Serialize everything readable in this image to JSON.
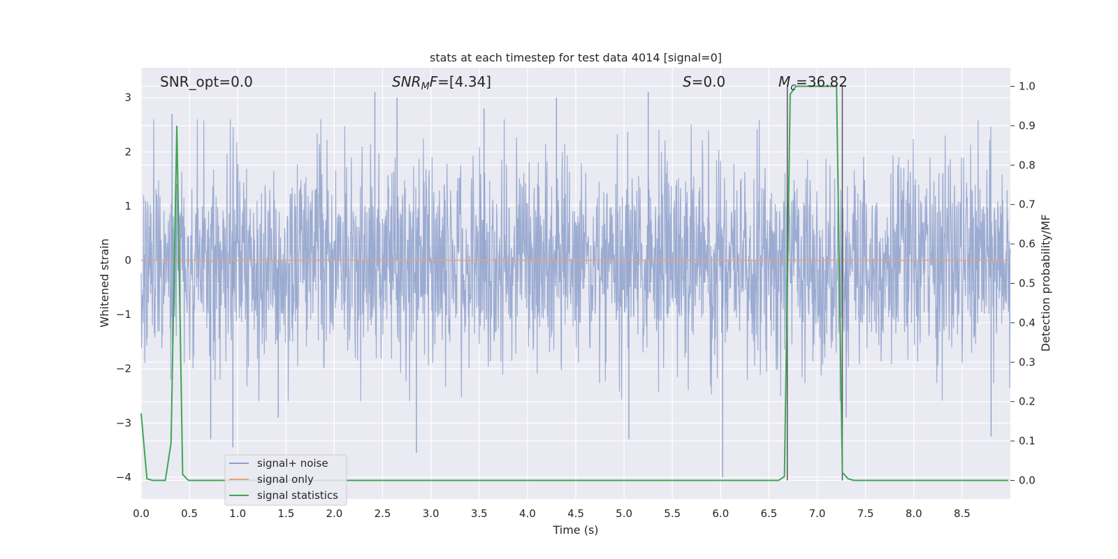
{
  "chart_data": {
    "type": "line",
    "title": "stats at each timestep for test data 4014 [signal=0]",
    "xlabel": "Time (s)",
    "ylabel": "Whitened strain",
    "y2label": "Detection probability/MF",
    "xlim": [
      0.0,
      9.0
    ],
    "ylim": [
      -4.4,
      3.55
    ],
    "y2lim": [
      -0.047,
      1.047
    ],
    "xticks": [
      0.0,
      0.5,
      1.0,
      1.5,
      2.0,
      2.5,
      3.0,
      3.5,
      4.0,
      4.5,
      5.0,
      5.5,
      6.0,
      6.5,
      7.0,
      7.5,
      8.0,
      8.5
    ],
    "xtick_labels": [
      "0.0",
      "0.5",
      "1.0",
      "1.5",
      "2.0",
      "2.5",
      "3.0",
      "3.5",
      "4.0",
      "4.5",
      "5.0",
      "5.5",
      "6.0",
      "6.5",
      "7.0",
      "7.5",
      "8.0",
      "8.5"
    ],
    "yticks": [
      -4,
      -3,
      -2,
      -1,
      0,
      1,
      2,
      3
    ],
    "ytick_labels": [
      "−4",
      "−3",
      "−2",
      "−1",
      "0",
      "1",
      "2",
      "3"
    ],
    "y2ticks": [
      0.0,
      0.1,
      0.2,
      0.3,
      0.4,
      0.5,
      0.6,
      0.7,
      0.8,
      0.9,
      1.0
    ],
    "y2tick_labels": [
      "0.0",
      "0.1",
      "0.2",
      "0.3",
      "0.4",
      "0.5",
      "0.6",
      "0.7",
      "0.8",
      "0.9",
      "1.0"
    ],
    "grid": true,
    "legend_position": "lower-left",
    "annotations": {
      "snr_opt": "SNR_opt=0.0",
      "snr_mf_main": "SNR",
      "snr_mf_sub": "M",
      "snr_mf_italic": "F",
      "snr_mf_rest": "=[4.34]",
      "s_italic": "S",
      "s_rest": "=0.0",
      "mc_main": "M",
      "mc_sub": "c",
      "mc_rest": "=36.82"
    },
    "series": [
      {
        "name": "signal+ noise",
        "color": "#8da0cb",
        "kind": "dense noise, amplitude roughly ±2, occasional spikes up to about 3.1 and down to about -4.0",
        "spikes": [
          {
            "x": 0.32,
            "y": 2.7
          },
          {
            "x": 0.72,
            "y": -3.3
          },
          {
            "x": 0.95,
            "y": -3.45
          },
          {
            "x": 1.42,
            "y": -2.9
          },
          {
            "x": 2.42,
            "y": 3.1
          },
          {
            "x": 2.85,
            "y": -3.55
          },
          {
            "x": 2.65,
            "y": 3.0
          },
          {
            "x": 4.3,
            "y": 3.0
          },
          {
            "x": 5.05,
            "y": -3.3
          },
          {
            "x": 5.25,
            "y": 3.1
          },
          {
            "x": 6.02,
            "y": -4.0
          },
          {
            "x": 8.8,
            "y": -3.25
          },
          {
            "x": 7.3,
            "y": -2.9
          },
          {
            "x": 3.55,
            "y": 2.8
          }
        ]
      },
      {
        "name": "signal only",
        "color": "#e5a27e",
        "x": [
          0.0,
          9.0
        ],
        "y": [
          0.0,
          0.0
        ]
      },
      {
        "name": "signal statistics",
        "color": "#3fa552",
        "axis": "right",
        "x": [
          0.0,
          0.06,
          0.12,
          0.18,
          0.25,
          0.31,
          0.37,
          0.43,
          0.49,
          0.55,
          0.61,
          6.6,
          6.66,
          6.72,
          6.78,
          6.84,
          6.9,
          7.2,
          7.26,
          7.32,
          7.38,
          7.44,
          8.98
        ],
        "y": [
          0.17,
          0.004,
          0.0,
          0.0,
          0.0,
          0.095,
          0.9,
          0.015,
          0.0,
          0.0,
          0.0,
          0.0,
          0.01,
          0.98,
          1.0,
          1.0,
          1.0,
          1.0,
          0.02,
          0.004,
          0.0,
          0.0,
          0.0
        ]
      }
    ],
    "vertical_lines": [
      {
        "x": 6.69,
        "color": "#555555"
      },
      {
        "x": 7.26,
        "color": "#555555"
      }
    ]
  }
}
